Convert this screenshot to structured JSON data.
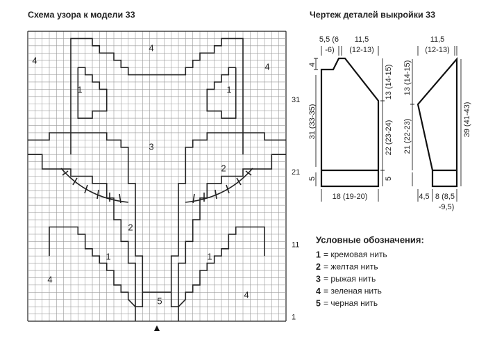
{
  "chart_title": "Схема узора к модели 33",
  "row_labels": [
    "31",
    "21",
    "11",
    "1"
  ],
  "region_labels": [
    "4",
    "4",
    "4",
    "1",
    "1",
    "3",
    "2",
    "2",
    "1",
    "1",
    "4",
    "5",
    "4"
  ],
  "drawing": {
    "title": "Чертеж деталей выкройки 33",
    "back": {
      "neck_width_a": "5,5 (6",
      "neck_width_b": "-6)",
      "shoulder_a": "11,5",
      "shoulder_b": "(12-13)",
      "neck_depth": "4",
      "total_height": "31 (33-35)",
      "armhole": "13 (14-15)",
      "side": "22 (23-24)",
      "rib_left": "5",
      "rib_right": "5",
      "width": "18 (19-20)"
    },
    "sleeve": {
      "top_a": "11,5",
      "top_b": "(12-13)",
      "cap": "13 (14-15)",
      "side": "21 (22-23)",
      "total_height": "39 (41-43)",
      "offset": "4,5",
      "bottom_a": "8 (8,5",
      "bottom_b": "-9,5)"
    }
  },
  "legend": {
    "title": "Условные обозначения:",
    "items": [
      {
        "num": "1",
        "text": "= кремовая нить"
      },
      {
        "num": "2",
        "text": "= желтая нить"
      },
      {
        "num": "3",
        "text": "= рыжая нить"
      },
      {
        "num": "4",
        "text": "= зеленая нить"
      },
      {
        "num": "5",
        "text": "= черная нить"
      }
    ]
  }
}
